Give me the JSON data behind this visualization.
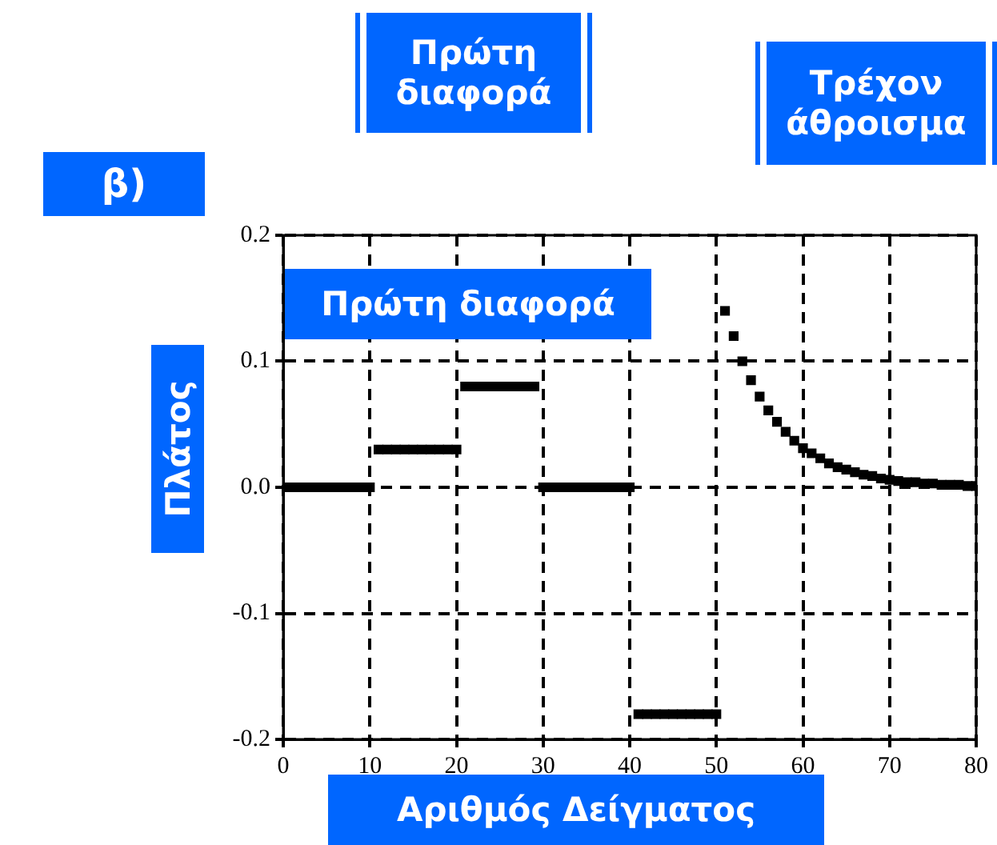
{
  "chart_data": {
    "type": "scatter",
    "title": "Πρώτη διαφορά",
    "xlabel": "Αριθμός Δείγματος",
    "ylabel": "Πλάτος",
    "annotations": [
      "β)",
      "Πρώτη\nδιαφορά",
      "Τρέχον\nάθροισμα"
    ],
    "x": [
      0,
      1,
      2,
      3,
      4,
      5,
      6,
      7,
      8,
      9,
      10,
      11,
      12,
      13,
      14,
      15,
      16,
      17,
      18,
      19,
      20,
      21,
      22,
      23,
      24,
      25,
      26,
      27,
      28,
      29,
      30,
      31,
      32,
      33,
      34,
      35,
      36,
      37,
      38,
      39,
      40,
      41,
      42,
      43,
      44,
      45,
      46,
      47,
      48,
      49,
      50,
      51,
      52,
      53,
      54,
      55,
      56,
      57,
      58,
      59,
      60,
      61,
      62,
      63,
      64,
      65,
      66,
      67,
      68,
      69,
      70,
      71,
      72,
      73,
      74,
      75,
      76,
      77,
      78,
      79,
      80
    ],
    "series": [
      {
        "color": "#000000",
        "values": [
          0,
          0,
          0,
          0,
          0,
          0,
          0,
          0,
          0,
          0,
          0,
          0.03,
          0.03,
          0.03,
          0.03,
          0.03,
          0.03,
          0.03,
          0.03,
          0.03,
          0.03,
          0.08,
          0.08,
          0.08,
          0.08,
          0.08,
          0.08,
          0.08,
          0.08,
          0.08,
          0,
          0,
          0,
          0,
          0,
          0,
          0,
          0,
          0,
          0,
          0,
          -0.18,
          -0.18,
          -0.18,
          -0.18,
          -0.18,
          -0.18,
          -0.18,
          -0.18,
          -0.18,
          -0.18,
          0.14,
          0.12,
          0.1,
          0.085,
          0.072,
          0.061,
          0.052,
          0.044,
          0.037,
          0.031,
          0.027,
          0.023,
          0.019,
          0.016,
          0.014,
          0.012,
          0.01,
          0.009,
          0.007,
          0.006,
          0.005,
          0.004,
          0.004,
          0.003,
          0.003,
          0.002,
          0.002,
          0.002,
          0.001,
          0.001
        ]
      }
    ],
    "xlim": [
      0,
      80
    ],
    "xticks": [
      0,
      10,
      20,
      30,
      40,
      50,
      60,
      70,
      80
    ],
    "ylim": [
      -0.2,
      0.2
    ],
    "yticks": [
      -0.2,
      -0.1,
      {
        "value": 0,
        "label": "0.0"
      },
      0.1,
      0.2
    ],
    "grid": true,
    "legend": false,
    "marker": "square"
  }
}
